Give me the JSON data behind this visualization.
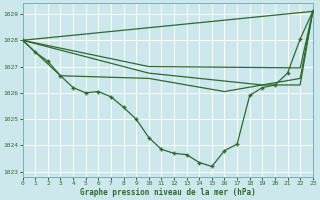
{
  "title": "Graphe pression niveau de la mer (hPa)",
  "bg_color": "#cce8ed",
  "grid_color": "#b8d8dd",
  "line_color": "#2d6a2d",
  "xlim": [
    0,
    23
  ],
  "ylim": [
    1022.8,
    1029.4
  ],
  "yticks": [
    1023,
    1024,
    1025,
    1026,
    1027,
    1028,
    1029
  ],
  "xticks": [
    0,
    1,
    2,
    3,
    4,
    5,
    6,
    7,
    8,
    9,
    10,
    11,
    12,
    13,
    14,
    15,
    16,
    17,
    18,
    19,
    20,
    21,
    22,
    23
  ],
  "main_x": [
    0,
    1,
    2,
    3,
    4,
    5,
    6,
    7,
    8,
    9,
    10,
    11,
    12,
    13,
    14,
    15,
    16,
    17,
    18,
    19,
    20,
    21,
    22,
    23
  ],
  "main_y": [
    1028.0,
    1027.55,
    1027.2,
    1026.65,
    1026.2,
    1026.0,
    1026.05,
    1025.85,
    1025.45,
    1025.0,
    1024.3,
    1023.85,
    1023.7,
    1023.65,
    1023.35,
    1023.2,
    1023.8,
    1024.05,
    1025.9,
    1026.2,
    1026.3,
    1026.75,
    1028.05,
    1029.1
  ],
  "fan_lines": [
    {
      "x": [
        0,
        23
      ],
      "y": [
        1028.0,
        1029.1
      ]
    },
    {
      "x": [
        0,
        10,
        22,
        23
      ],
      "y": [
        1028.0,
        1027.0,
        1026.95,
        1029.1
      ]
    },
    {
      "x": [
        0,
        10,
        19,
        22,
        23
      ],
      "y": [
        1028.0,
        1026.75,
        1026.3,
        1026.3,
        1029.1
      ]
    },
    {
      "x": [
        0,
        3,
        10,
        16,
        19,
        22,
        23
      ],
      "y": [
        1028.0,
        1026.65,
        1026.55,
        1026.05,
        1026.3,
        1026.55,
        1029.1
      ]
    }
  ]
}
